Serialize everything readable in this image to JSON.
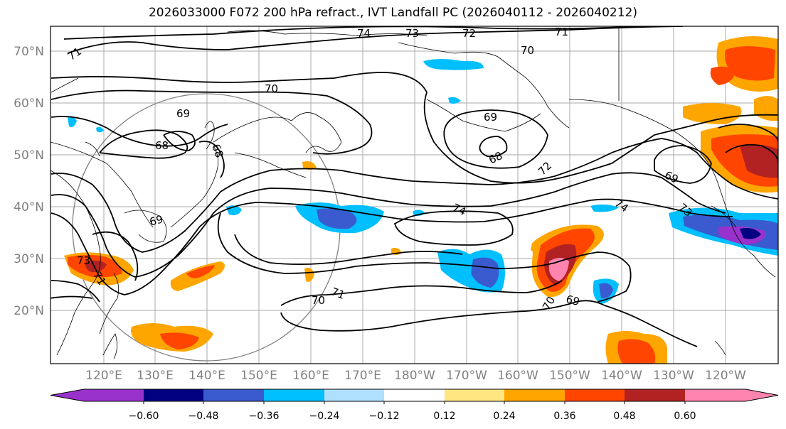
{
  "title": "2026033000 F072 200 hPa refract., IVT Landfall PC (2026040112 - 2026040212)",
  "lat_labels": [
    "70°N",
    "60°N",
    "50°N",
    "40°N",
    "30°N",
    "20°N"
  ],
  "lon_labels": [
    "120°E",
    "130°E",
    "140°E",
    "150°E",
    "160°E",
    "170°E",
    "180°W",
    "170°W",
    "160°W",
    "150°W",
    "140°W",
    "130°W",
    "120°W"
  ],
  "contour_labels": [
    "74",
    "73",
    "72",
    "71",
    "70",
    "71",
    "70",
    "69",
    "68",
    "68",
    "69",
    "68",
    "72",
    "69",
    "74",
    "74",
    "73",
    "69",
    "73",
    "71",
    "71",
    "70",
    "69",
    "70"
  ],
  "colorbar": {
    "ticks": [
      "−0.60",
      "−0.48",
      "−0.36",
      "−0.24",
      "−0.12",
      "0.12",
      "0.24",
      "0.36",
      "0.48",
      "0.60"
    ],
    "colors": [
      "#9932cc",
      "#000080",
      "#3a5bcf",
      "#00bfff",
      "#b0e0ff",
      "#ffffff",
      "#ffe680",
      "#ffa500",
      "#ff4500",
      "#b22222",
      "#ff85b0"
    ]
  },
  "colors": {
    "ocean": "#ffffff",
    "grid": "#a0a0a0",
    "contour": "#000000",
    "purple": "#9932cc",
    "navy": "#000080",
    "blue": "#3a5bcf",
    "cyan": "#00bfff",
    "lightblue": "#b0e0ff",
    "yellow": "#ffe680",
    "orange": "#ffa500",
    "redorange": "#ff4500",
    "darkred": "#b22222",
    "pink": "#ff85b0"
  }
}
